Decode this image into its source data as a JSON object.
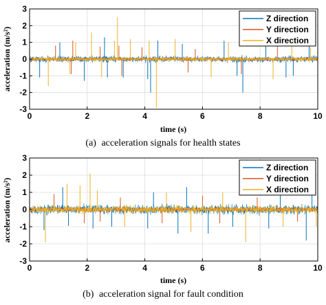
{
  "chart_data": [
    {
      "type": "line",
      "panel_label": "(a)",
      "caption": "acceleration signals for health states",
      "xlabel": "time (s)",
      "ylabel": "acceleration (m/s²)",
      "xlim": [
        0,
        10
      ],
      "ylim": [
        -3,
        3
      ],
      "xticks": [
        "0",
        "2",
        "4",
        "6",
        "8",
        "10"
      ],
      "yticks": [
        "3",
        "2",
        "1",
        "0",
        "-1",
        "-2",
        "-3"
      ],
      "grid": true,
      "legend_position": "top-right",
      "series": [
        {
          "name": "Z direction",
          "color": "#0072BD",
          "noise_amplitude": 0.28,
          "spikes": [
            [
              0.35,
              -1.1
            ],
            [
              1.05,
              1.0
            ],
            [
              1.9,
              -1.3
            ],
            [
              2.6,
              1.3
            ],
            [
              2.7,
              -1.1
            ],
            [
              3.25,
              -1.1
            ],
            [
              4.1,
              -1.2
            ],
            [
              4.2,
              -2.0
            ],
            [
              4.45,
              1.1
            ],
            [
              5.3,
              0.9
            ],
            [
              6.75,
              1.1
            ],
            [
              7.2,
              -1.0
            ],
            [
              7.4,
              -2.0
            ],
            [
              8.2,
              1.1
            ],
            [
              8.9,
              -1.1
            ],
            [
              9.15,
              -1.0
            ],
            [
              9.7,
              1.1
            ]
          ]
        },
        {
          "name": "Y direction",
          "color": "#D95319",
          "noise_amplitude": 0.15,
          "spikes": [
            [
              0.9,
              0.8
            ],
            [
              1.45,
              -0.9
            ],
            [
              1.5,
              1.1
            ],
            [
              2.45,
              0.75
            ],
            [
              3.1,
              0.8
            ],
            [
              3.2,
              -1.0
            ],
            [
              3.9,
              0.7
            ],
            [
              5.5,
              -0.8
            ],
            [
              5.75,
              0.6
            ],
            [
              7.35,
              -0.9
            ],
            [
              8.6,
              0.8
            ]
          ]
        },
        {
          "name": "X direction",
          "color": "#EDB120",
          "noise_amplitude": 0.18,
          "spikes": [
            [
              0.65,
              -1.6
            ],
            [
              1.4,
              -0.9
            ],
            [
              1.6,
              1.0
            ],
            [
              2.15,
              1.6
            ],
            [
              2.5,
              -1.1
            ],
            [
              2.95,
              1.1
            ],
            [
              3.05,
              2.5
            ],
            [
              3.5,
              1.2
            ],
            [
              4.15,
              1.1
            ],
            [
              4.4,
              -2.9
            ],
            [
              5.05,
              1.2
            ],
            [
              6.3,
              -1.1
            ],
            [
              6.9,
              1.0
            ],
            [
              8.45,
              -1.2
            ],
            [
              9.1,
              1.0
            ],
            [
              9.75,
              0.7
            ]
          ]
        }
      ]
    },
    {
      "type": "line",
      "panel_label": "(b)",
      "caption": "acceleration signal for fault condition",
      "xlabel": "time (s)",
      "ylabel": "acceleration (m/s²)",
      "xlim": [
        0,
        10
      ],
      "ylim": [
        -3,
        3
      ],
      "xticks": [
        "0",
        "2",
        "4",
        "6",
        "8",
        "10"
      ],
      "yticks": [
        "3",
        "2",
        "1",
        "0",
        "-1",
        "-2",
        "-3"
      ],
      "grid": true,
      "legend_position": "top-right",
      "series": [
        {
          "name": "Z direction",
          "color": "#0072BD",
          "noise_amplitude": 0.4,
          "spikes": [
            [
              0.5,
              -1.2
            ],
            [
              1.15,
              1.3
            ],
            [
              1.35,
              -0.95
            ],
            [
              2.2,
              -1.1
            ],
            [
              2.85,
              -1.0
            ],
            [
              4.1,
              -1.1
            ],
            [
              4.3,
              1.0
            ],
            [
              5.15,
              -1.4
            ],
            [
              5.45,
              1.3
            ],
            [
              6.2,
              -1.4
            ],
            [
              7.05,
              -1.0
            ],
            [
              8.3,
              -1.1
            ],
            [
              8.7,
              1.1
            ],
            [
              9.6,
              -1.8
            ],
            [
              9.8,
              1.2
            ]
          ]
        },
        {
          "name": "Y direction",
          "color": "#D95319",
          "noise_amplitude": 0.2,
          "spikes": [
            [
              0.85,
              0.9
            ],
            [
              1.9,
              -0.8
            ],
            [
              2.45,
              -0.7
            ],
            [
              3.15,
              0.7
            ],
            [
              4.6,
              -0.8
            ],
            [
              6.0,
              0.8
            ],
            [
              6.6,
              -0.8
            ],
            [
              7.9,
              0.7
            ],
            [
              9.3,
              -0.7
            ]
          ]
        },
        {
          "name": "X direction",
          "color": "#EDB120",
          "noise_amplitude": 0.32,
          "spikes": [
            [
              0.55,
              -1.9
            ],
            [
              1.3,
              1.5
            ],
            [
              1.75,
              1.4
            ],
            [
              2.1,
              2.1
            ],
            [
              2.35,
              1.1
            ],
            [
              3.3,
              -1.0
            ],
            [
              4.75,
              1.0
            ],
            [
              5.6,
              -1.3
            ],
            [
              6.7,
              1.0
            ],
            [
              7.5,
              -1.9
            ],
            [
              8.8,
              -1.0
            ],
            [
              9.95,
              -1.0
            ]
          ]
        }
      ]
    }
  ]
}
